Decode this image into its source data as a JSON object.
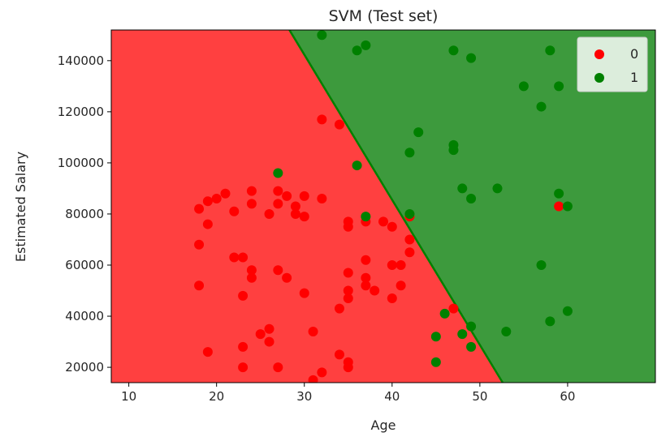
{
  "chart_data": {
    "type": "scatter",
    "title": "SVM (Test set)",
    "xlabel": "Age",
    "ylabel": "Estimated Salary",
    "xlim": [
      8,
      70
    ],
    "ylim": [
      14000,
      152000
    ],
    "xticks": [
      10,
      20,
      30,
      40,
      50,
      60
    ],
    "yticks": [
      20000,
      40000,
      60000,
      80000,
      100000,
      120000,
      140000
    ],
    "legend_position": "top-right",
    "grid": false,
    "decision_regions": {
      "boundary": [
        [
          28.3,
          152000
        ],
        [
          52.6,
          14000
        ]
      ],
      "class_0_color": "#ff4040",
      "class_1_color": "#3d9a3d",
      "boundary_color": "#008000"
    },
    "series": [
      {
        "name": "0",
        "color": "#ff0000",
        "points": [
          [
            18,
            82000
          ],
          [
            19,
            85000
          ],
          [
            20,
            86000
          ],
          [
            21,
            88000
          ],
          [
            19,
            76000
          ],
          [
            22,
            81000
          ],
          [
            18,
            68000
          ],
          [
            18,
            52000
          ],
          [
            22,
            63000
          ],
          [
            23,
            63000
          ],
          [
            24,
            58000
          ],
          [
            24,
            55000
          ],
          [
            23,
            48000
          ],
          [
            19,
            26000
          ],
          [
            23,
            28000
          ],
          [
            23,
            20000
          ],
          [
            25,
            33000
          ],
          [
            26,
            35000
          ],
          [
            26,
            30000
          ],
          [
            27,
            20000
          ],
          [
            24,
            89000
          ],
          [
            24,
            84000
          ],
          [
            26,
            80000
          ],
          [
            27,
            89000
          ],
          [
            27,
            84000
          ],
          [
            28,
            87000
          ],
          [
            29,
            83000
          ],
          [
            29,
            80000
          ],
          [
            30,
            87000
          ],
          [
            30,
            79000
          ],
          [
            32,
            86000
          ],
          [
            27,
            58000
          ],
          [
            28,
            55000
          ],
          [
            30,
            49000
          ],
          [
            31,
            34000
          ],
          [
            31,
            15000
          ],
          [
            32,
            18000
          ],
          [
            32,
            117000
          ],
          [
            34,
            115000
          ],
          [
            34,
            43000
          ],
          [
            34,
            25000
          ],
          [
            35,
            22000
          ],
          [
            35,
            20000
          ],
          [
            35,
            77000
          ],
          [
            35,
            75000
          ],
          [
            35,
            57000
          ],
          [
            35,
            50000
          ],
          [
            35,
            47000
          ],
          [
            37,
            77000
          ],
          [
            37,
            62000
          ],
          [
            37,
            55000
          ],
          [
            37,
            52000
          ],
          [
            38,
            50000
          ],
          [
            39,
            77000
          ],
          [
            40,
            75000
          ],
          [
            40,
            60000
          ],
          [
            40,
            47000
          ],
          [
            41,
            60000
          ],
          [
            41,
            52000
          ],
          [
            42,
            79000
          ],
          [
            42,
            70000
          ],
          [
            42,
            65000
          ],
          [
            47,
            43000
          ],
          [
            59,
            83000
          ]
        ]
      },
      {
        "name": "1",
        "color": "#008000",
        "points": [
          [
            32,
            150000
          ],
          [
            36,
            144000
          ],
          [
            37,
            146000
          ],
          [
            47,
            144000
          ],
          [
            49,
            141000
          ],
          [
            58,
            144000
          ],
          [
            55,
            130000
          ],
          [
            59,
            130000
          ],
          [
            57,
            122000
          ],
          [
            43,
            112000
          ],
          [
            42,
            104000
          ],
          [
            47,
            107000
          ],
          [
            47,
            105000
          ],
          [
            36,
            99000
          ],
          [
            27,
            96000
          ],
          [
            48,
            90000
          ],
          [
            52,
            90000
          ],
          [
            49,
            86000
          ],
          [
            59,
            88000
          ],
          [
            60,
            83000
          ],
          [
            37,
            79000
          ],
          [
            42,
            80000
          ],
          [
            57,
            60000
          ],
          [
            46,
            41000
          ],
          [
            60,
            42000
          ],
          [
            58,
            38000
          ],
          [
            45,
            32000
          ],
          [
            48,
            33000
          ],
          [
            49,
            36000
          ],
          [
            53,
            34000
          ],
          [
            49,
            28000
          ],
          [
            45,
            22000
          ]
        ]
      }
    ]
  }
}
